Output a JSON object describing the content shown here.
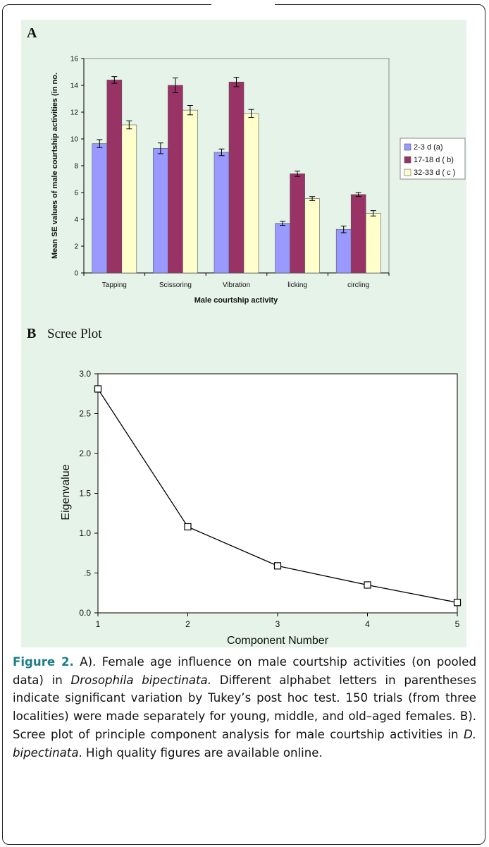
{
  "chart_data": [
    {
      "panel_label": "A",
      "type": "bar",
      "categories": [
        "Tapping",
        "Scissoring",
        "Vibration",
        "licking",
        "circling"
      ],
      "series": [
        {
          "name": "2-3 d (a)",
          "color": "#9999ff",
          "values": [
            9.65,
            9.3,
            9.0,
            3.7,
            3.25
          ],
          "errors": [
            0.3,
            0.4,
            0.25,
            0.15,
            0.25
          ]
        },
        {
          "name": "17-18 d ( b)",
          "color": "#993366",
          "values": [
            14.4,
            14.0,
            14.25,
            7.4,
            5.85
          ],
          "errors": [
            0.25,
            0.55,
            0.35,
            0.2,
            0.15
          ]
        },
        {
          "name": "32-33 d ( c )",
          "color": "#ffffcc",
          "values": [
            11.05,
            12.15,
            11.9,
            5.55,
            4.45
          ],
          "errors": [
            0.3,
            0.35,
            0.3,
            0.15,
            0.2
          ]
        }
      ],
      "xlabel": "Male courtship activity",
      "ylabel": "Mean SE values of male courtship activities (in no.",
      "ylim": [
        0,
        16
      ],
      "yticks": [
        "0",
        "2",
        "4",
        "6",
        "8",
        "10",
        "12",
        "14",
        "16"
      ],
      "legend_position": "right",
      "grid": false
    },
    {
      "panel_label": "B",
      "type": "line",
      "title": "Scree Plot",
      "x": [
        1,
        2,
        3,
        4,
        5
      ],
      "values": [
        2.81,
        1.08,
        0.59,
        0.35,
        0.13
      ],
      "xlabel": "Component Number",
      "ylabel": "Eigenvalue",
      "xticks": [
        "1",
        "2",
        "3",
        "4",
        "5"
      ],
      "ylim": [
        0,
        3
      ],
      "yticks": [
        "0.0",
        ".5",
        "1.0",
        "1.5",
        "2.0",
        "2.5",
        "3.0"
      ],
      "marker": "square",
      "grid": false
    }
  ],
  "caption": {
    "label": "Figure 2.",
    "parts": [
      {
        "t": " A). Female age influence on male courtship activities (on pooled data) in ",
        "i": false
      },
      {
        "t": "Drosophila bipectinata.",
        "i": true
      },
      {
        "t": " Different alphabet letters in parentheses indicate significant variation by Tukey’s post hoc test. 150 trials (from three localities) were made separately for young, middle, and old–aged females. B). Scree plot of principle component analysis for male courtship activities in ",
        "i": false
      },
      {
        "t": "D. bipectinata",
        "i": true
      },
      {
        "t": ". High quality figures are available online.",
        "i": false
      }
    ]
  },
  "colors": {
    "panel_background": "#e6f3e9",
    "caption_label": "#1a7f86"
  }
}
